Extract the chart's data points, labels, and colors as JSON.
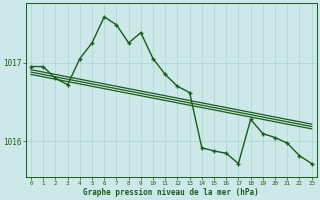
{
  "xlabel": "Graphe pression niveau de la mer (hPa)",
  "bg_color": "#cce8e8",
  "grid_color": "#aad4d4",
  "line_color": "#1a5c1a",
  "x_ticks": [
    0,
    1,
    2,
    3,
    4,
    5,
    6,
    7,
    8,
    9,
    10,
    11,
    12,
    13,
    14,
    15,
    16,
    17,
    18,
    19,
    20,
    21,
    22,
    23
  ],
  "yticks": [
    1016,
    1017
  ],
  "ylim": [
    1015.55,
    1017.75
  ],
  "xlim": [
    -0.4,
    23.4
  ],
  "series1_x": [
    0,
    1,
    2,
    3,
    4,
    5,
    6,
    7,
    8,
    9,
    10,
    11,
    12,
    13,
    14,
    15,
    16,
    17,
    18,
    19,
    20,
    21,
    22,
    23
  ],
  "series1_y": [
    1016.85,
    1016.82,
    1016.79,
    1016.76,
    1016.73,
    1016.7,
    1016.67,
    1016.64,
    1016.61,
    1016.58,
    1016.55,
    1016.52,
    1016.49,
    1016.46,
    1016.43,
    1016.4,
    1016.37,
    1016.34,
    1016.31,
    1016.28,
    1016.25,
    1016.22,
    1016.19,
    1016.16
  ],
  "series2_x": [
    0,
    1,
    2,
    3,
    4,
    5,
    6,
    7,
    8,
    9,
    10,
    11,
    12,
    13,
    14,
    15,
    16,
    17,
    18,
    19,
    20,
    21,
    22,
    23
  ],
  "series2_y": [
    1016.88,
    1016.85,
    1016.82,
    1016.79,
    1016.76,
    1016.73,
    1016.7,
    1016.67,
    1016.64,
    1016.61,
    1016.58,
    1016.55,
    1016.52,
    1016.49,
    1016.46,
    1016.43,
    1016.4,
    1016.37,
    1016.34,
    1016.31,
    1016.28,
    1016.25,
    1016.22,
    1016.19
  ],
  "series3_x": [
    0,
    1,
    2,
    3,
    4,
    5,
    6,
    7,
    8,
    9,
    10,
    11,
    12,
    13,
    14,
    15,
    16,
    17,
    18,
    19,
    20,
    21,
    22,
    23
  ],
  "series3_y": [
    1016.91,
    1016.88,
    1016.85,
    1016.82,
    1016.79,
    1016.76,
    1016.73,
    1016.7,
    1016.67,
    1016.64,
    1016.61,
    1016.58,
    1016.55,
    1016.52,
    1016.49,
    1016.46,
    1016.43,
    1016.4,
    1016.37,
    1016.34,
    1016.31,
    1016.28,
    1016.25,
    1016.22
  ],
  "main_x": [
    0,
    1,
    2,
    3,
    4,
    5,
    6,
    7,
    8,
    9,
    10,
    11,
    12,
    13,
    14,
    15,
    16,
    17,
    18,
    19,
    20,
    21,
    22,
    23
  ],
  "main_y": [
    1016.95,
    1016.95,
    1016.8,
    1016.72,
    1017.05,
    1017.25,
    1017.58,
    1017.48,
    1017.25,
    1017.38,
    1017.05,
    1016.85,
    1016.7,
    1016.62,
    1015.92,
    1015.88,
    1015.85,
    1015.72,
    1016.28,
    1016.1,
    1016.05,
    1015.98,
    1015.82,
    1015.72
  ]
}
